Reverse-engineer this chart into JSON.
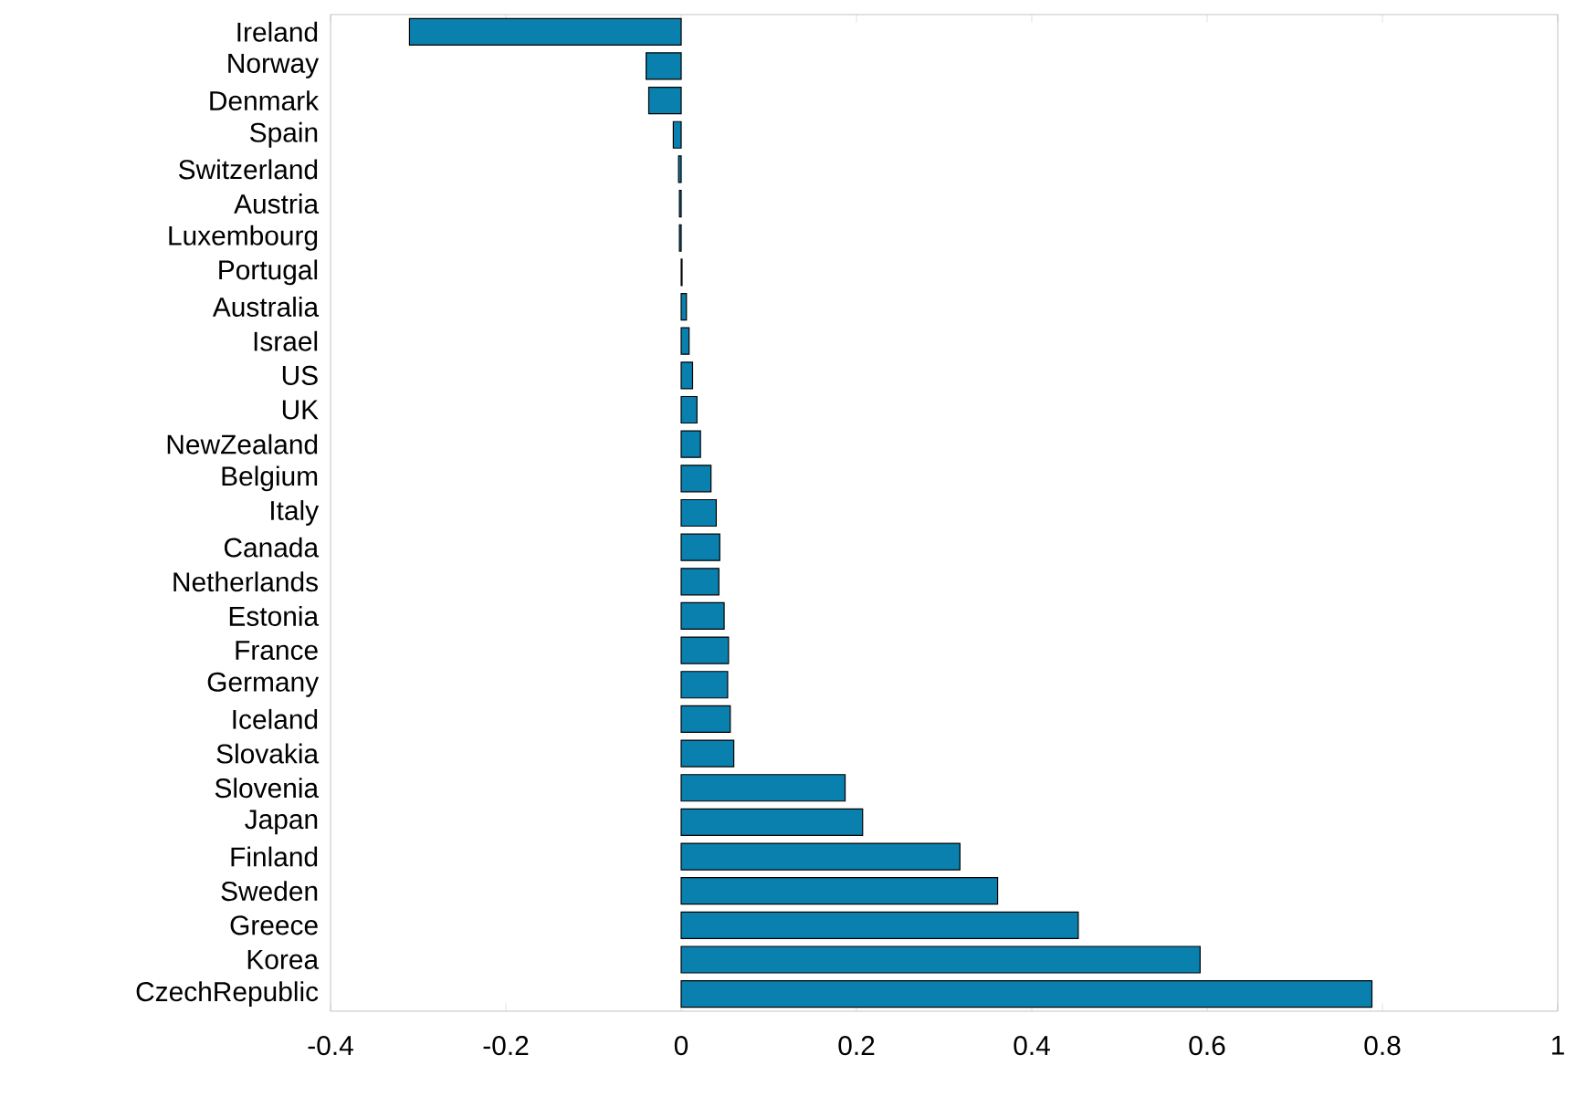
{
  "chart_data": {
    "type": "bar",
    "orientation": "horizontal",
    "color": "#0a80ae",
    "categories": [
      "Ireland",
      "Norway",
      "Denmark",
      "Spain",
      "Switzerland",
      "Austria",
      "Luxembourg",
      "Portugal",
      "Australia",
      "Israel",
      "US",
      "UK",
      "NewZealand",
      "Belgium",
      "Italy",
      "Canada",
      "Netherlands",
      "Estonia",
      "France",
      "Germany",
      "Iceland",
      "Slovakia",
      "Slovenia",
      "Japan",
      "Finland",
      "Sweden",
      "Greece",
      "Korea",
      "CzechRepublic"
    ],
    "values": [
      -0.31,
      -0.04,
      -0.037,
      -0.009,
      -0.003,
      -0.002,
      -0.002,
      0.001,
      0.006,
      0.009,
      0.013,
      0.018,
      0.022,
      0.034,
      0.04,
      0.044,
      0.043,
      0.049,
      0.054,
      0.053,
      0.056,
      0.06,
      0.187,
      0.207,
      0.318,
      0.361,
      0.453,
      0.592,
      0.788
    ],
    "xlim": [
      -0.4,
      1
    ],
    "xticks": [
      -0.4,
      -0.2,
      0,
      0.2,
      0.4,
      0.6,
      0.8,
      1
    ]
  }
}
